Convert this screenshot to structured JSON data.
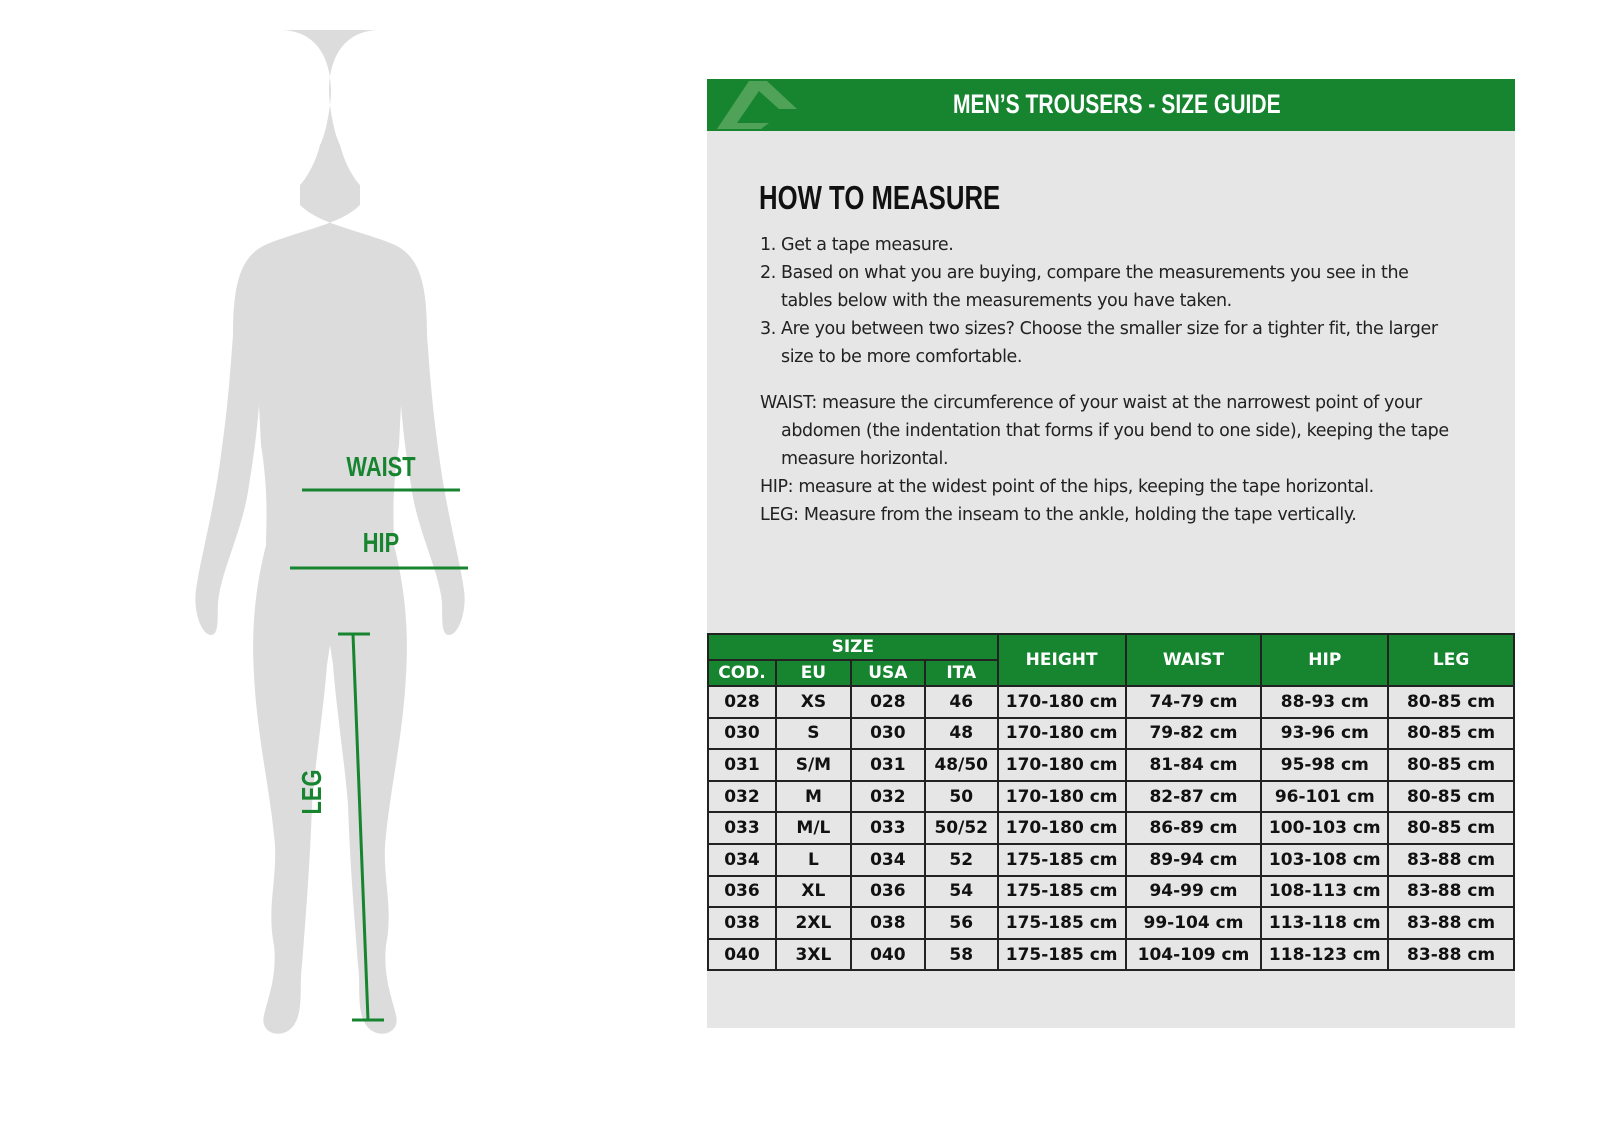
{
  "figure": {
    "labels": {
      "waist": "WAIST",
      "hip": "HIP",
      "leg": "LEG"
    },
    "accent": "#178530"
  },
  "banner": {
    "title": "MEN’S TROUSERS - SIZE GUIDE",
    "logo": "A"
  },
  "how_to": {
    "heading": "HOW TO MEASURE",
    "steps": [
      "1. Get a tape measure.",
      "2. Based on what you are buying, compare the measurements you see in the",
      "tables below with the measurements you have taken.",
      "3. Are you between two sizes? Choose the smaller size for a tighter fit, the larger",
      "size to be more comfortable."
    ],
    "defs": [
      "WAIST: measure the circumference of your waist at the narrowest point of your",
      "abdomen (the indentation that forms if you bend to one side), keeping the tape",
      "measure horizontal.",
      "HIP: measure at the widest point of the hips, keeping the tape horizontal.",
      "LEG: Measure from the inseam to the ankle, holding the tape vertically."
    ]
  },
  "table": {
    "group": "SIZE",
    "sub": [
      "COD.",
      "EU",
      "USA",
      "ITA"
    ],
    "cols": [
      "HEIGHT",
      "WAIST",
      "HIP",
      "LEG"
    ],
    "rows": [
      [
        "028",
        "XS",
        "028",
        "46",
        "170-180 cm",
        "74-79 cm",
        "88-93 cm",
        "80-85 cm"
      ],
      [
        "030",
        "S",
        "030",
        "48",
        "170-180 cm",
        "79-82 cm",
        "93-96 cm",
        "80-85 cm"
      ],
      [
        "031",
        "S/M",
        "031",
        "48/50",
        "170-180 cm",
        "81-84 cm",
        "95-98 cm",
        "80-85 cm"
      ],
      [
        "032",
        "M",
        "032",
        "50",
        "170-180 cm",
        "82-87 cm",
        "96-101 cm",
        "80-85 cm"
      ],
      [
        "033",
        "M/L",
        "033",
        "50/52",
        "170-180 cm",
        "86-89 cm",
        "100-103 cm",
        "80-85 cm"
      ],
      [
        "034",
        "L",
        "034",
        "52",
        "175-185 cm",
        "89-94 cm",
        "103-108 cm",
        "83-88 cm"
      ],
      [
        "036",
        "XL",
        "036",
        "54",
        "175-185 cm",
        "94-99 cm",
        "108-113 cm",
        "83-88 cm"
      ],
      [
        "038",
        "2XL",
        "038",
        "56",
        "175-185 cm",
        "99-104 cm",
        "113-118 cm",
        "83-88 cm"
      ],
      [
        "040",
        "3XL",
        "040",
        "58",
        "175-185 cm",
        "104-109 cm",
        "118-123 cm",
        "83-88 cm"
      ]
    ]
  }
}
